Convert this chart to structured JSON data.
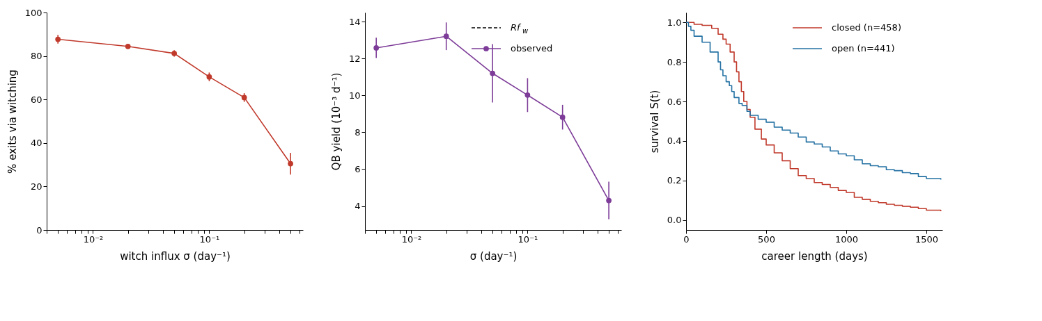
{
  "chart_data": [
    {
      "type": "line",
      "xlabel": "witch influx σ (day⁻¹)",
      "ylabel": "% exits via witching",
      "log": "x",
      "marker": "circle",
      "grid": false,
      "legend": false,
      "x": [
        0.005,
        0.02,
        0.05,
        0.1,
        0.2,
        0.5
      ],
      "series": [
        {
          "color": "#c0392b",
          "values": [
            87.7,
            84.4,
            81.2,
            70.4,
            60.9,
            30.5
          ],
          "errors": [
            2,
            1,
            1.5,
            2,
            2,
            5
          ]
        }
      ],
      "xlim": [
        0.004,
        0.64
      ],
      "xticks": [
        {
          "value": 0.004,
          "label": null
        },
        {
          "value": 0.005,
          "label": null
        },
        {
          "value": 0.006,
          "label": null
        },
        {
          "value": 0.007,
          "label": null
        },
        {
          "value": 0.008,
          "label": null
        },
        {
          "value": 0.009,
          "label": null
        },
        {
          "value": 0.01,
          "label": "10⁻²"
        },
        {
          "value": 0.02,
          "label": null
        },
        {
          "value": 0.03,
          "label": null
        },
        {
          "value": 0.04,
          "label": null
        },
        {
          "value": 0.05,
          "label": null
        },
        {
          "value": 0.06,
          "label": null
        },
        {
          "value": 0.07,
          "label": null
        },
        {
          "value": 0.08,
          "label": null
        },
        {
          "value": 0.09,
          "label": null
        },
        {
          "value": 0.1,
          "label": "10⁻¹"
        },
        {
          "value": 0.2,
          "label": null
        },
        {
          "value": 0.3,
          "label": null
        },
        {
          "value": 0.4,
          "label": null
        },
        {
          "value": 0.5,
          "label": null
        },
        {
          "value": 0.6,
          "label": null
        }
      ],
      "ylim": [
        0,
        100
      ],
      "yticks": [
        0,
        20,
        40,
        60,
        80,
        100
      ]
    },
    {
      "type": "line",
      "xlabel": "σ (day⁻¹)",
      "ylabel": "QB yield (10⁻³ d⁻¹)",
      "log": "x",
      "marker": "circle",
      "grid": false,
      "legend": "top right",
      "x": [
        0.005,
        0.02,
        0.05,
        0.1,
        0.2,
        0.5
      ],
      "series": [
        {
          "name": "Rf$_{w}$",
          "color": "#000000",
          "line_style": "dashed",
          "marker": "none",
          "values": [
            null,
            null,
            null,
            null,
            null,
            null
          ]
        },
        {
          "name": "observed",
          "color": "#7d3c98",
          "values": [
            12.58,
            13.21,
            11.2,
            10.02,
            8.82,
            4.3
          ],
          "errors": [
            0.55,
            0.75,
            1.58,
            0.92,
            0.67,
            1.02
          ]
        }
      ],
      "xlim": [
        0.004,
        0.64
      ],
      "xticks": [
        {
          "value": 0.004,
          "label": null
        },
        {
          "value": 0.005,
          "label": null
        },
        {
          "value": 0.006,
          "label": null
        },
        {
          "value": 0.007,
          "label": null
        },
        {
          "value": 0.008,
          "label": null
        },
        {
          "value": 0.009,
          "label": null
        },
        {
          "value": 0.01,
          "label": "10⁻²"
        },
        {
          "value": 0.02,
          "label": null
        },
        {
          "value": 0.03,
          "label": null
        },
        {
          "value": 0.04,
          "label": null
        },
        {
          "value": 0.05,
          "label": null
        },
        {
          "value": 0.06,
          "label": null
        },
        {
          "value": 0.07,
          "label": null
        },
        {
          "value": 0.08,
          "label": null
        },
        {
          "value": 0.09,
          "label": null
        },
        {
          "value": 0.1,
          "label": "10⁻¹"
        },
        {
          "value": 0.2,
          "label": null
        },
        {
          "value": 0.3,
          "label": null
        },
        {
          "value": 0.4,
          "label": null
        },
        {
          "value": 0.5,
          "label": null
        },
        {
          "value": 0.6,
          "label": null
        }
      ],
      "ylim": [
        2.7,
        14.5
      ],
      "yticks": [
        4,
        6,
        8,
        10,
        12,
        14
      ]
    },
    {
      "type": "step",
      "xlabel": "career length (days)",
      "ylabel": "survival S(t)",
      "grid": false,
      "legend": "top right",
      "series": [
        {
          "name": "closed (n=458)",
          "color": "#c0392b",
          "x": [
            0,
            50,
            100,
            160,
            200,
            230,
            250,
            275,
            300,
            315,
            330,
            345,
            360,
            380,
            400,
            430,
            470,
            500,
            550,
            600,
            650,
            700,
            750,
            800,
            850,
            900,
            950,
            1000,
            1050,
            1100,
            1150,
            1200,
            1250,
            1300,
            1350,
            1400,
            1450,
            1500,
            1590
          ],
          "values": [
            1.0,
            0.99,
            0.985,
            0.97,
            0.94,
            0.915,
            0.89,
            0.85,
            0.8,
            0.75,
            0.7,
            0.65,
            0.6,
            0.56,
            0.52,
            0.46,
            0.41,
            0.38,
            0.34,
            0.3,
            0.26,
            0.225,
            0.21,
            0.19,
            0.18,
            0.165,
            0.15,
            0.14,
            0.115,
            0.105,
            0.095,
            0.088,
            0.08,
            0.075,
            0.07,
            0.065,
            0.058,
            0.05,
            0.045
          ]
        },
        {
          "name": "open (n=441)",
          "color": "#2471a3",
          "x": [
            0,
            15,
            30,
            50,
            100,
            150,
            200,
            215,
            230,
            250,
            270,
            285,
            300,
            330,
            350,
            380,
            400,
            450,
            500,
            550,
            600,
            650,
            700,
            750,
            800,
            850,
            900,
            950,
            1000,
            1050,
            1100,
            1150,
            1200,
            1250,
            1300,
            1350,
            1400,
            1450,
            1500,
            1590
          ],
          "values": [
            1.0,
            0.98,
            0.96,
            0.93,
            0.9,
            0.85,
            0.8,
            0.76,
            0.73,
            0.7,
            0.68,
            0.65,
            0.62,
            0.59,
            0.58,
            0.55,
            0.53,
            0.51,
            0.495,
            0.47,
            0.455,
            0.44,
            0.42,
            0.395,
            0.385,
            0.37,
            0.35,
            0.335,
            0.325,
            0.305,
            0.285,
            0.275,
            0.27,
            0.255,
            0.25,
            0.24,
            0.235,
            0.22,
            0.21,
            0.205
          ]
        }
      ],
      "xlim": [
        0,
        1600
      ],
      "xticks": [
        0,
        500,
        1000,
        1500
      ],
      "ylim": [
        -0.05,
        1.05
      ],
      "yticks": [
        {
          "value": 0,
          "label": "0.0"
        },
        0.2,
        0.4,
        0.6,
        0.8,
        {
          "value": 1,
          "label": "1.0"
        }
      ]
    }
  ]
}
